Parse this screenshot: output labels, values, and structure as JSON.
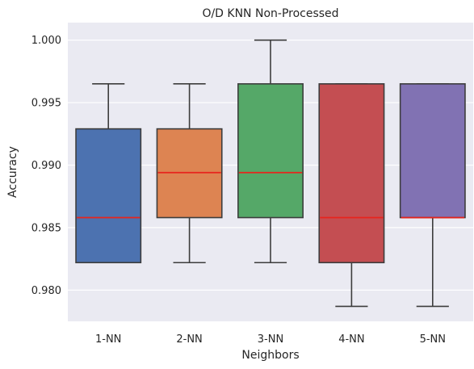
{
  "chart_data": {
    "type": "box",
    "title": "O/D KNN Non-Processed",
    "xlabel": "Neighbors",
    "ylabel": "Accuracy",
    "ylim": [
      0.9775,
      1.0014
    ],
    "yticks": [
      0.98,
      0.985,
      0.99,
      0.995,
      1.0
    ],
    "ytick_labels": [
      "0.980",
      "0.985",
      "0.990",
      "0.995",
      "1.000"
    ],
    "grid": true,
    "median_color": "#e8241c",
    "box_edge_color": "#3d3d3d",
    "background_color": "#eaeaf2",
    "categories": [
      "1-NN",
      "2-NN",
      "3-NN",
      "4-NN",
      "5-NN"
    ],
    "boxes": [
      {
        "label": "1-NN",
        "whisker_low": 0.9822,
        "q1": 0.9822,
        "median": 0.9858,
        "q3": 0.9929,
        "whisker_high": 0.9965,
        "color": "#4c72b0"
      },
      {
        "label": "2-NN",
        "whisker_low": 0.9822,
        "q1": 0.9858,
        "median": 0.9894,
        "q3": 0.9929,
        "whisker_high": 0.9965,
        "color": "#dd8452"
      },
      {
        "label": "3-NN",
        "whisker_low": 0.9822,
        "q1": 0.9858,
        "median": 0.9894,
        "q3": 0.9965,
        "whisker_high": 1.0,
        "color": "#55a868"
      },
      {
        "label": "4-NN",
        "whisker_low": 0.9787,
        "q1": 0.9822,
        "median": 0.9858,
        "q3": 0.9965,
        "whisker_high": 0.9965,
        "color": "#c44e52"
      },
      {
        "label": "5-NN",
        "whisker_low": 0.9787,
        "q1": 0.9858,
        "median": 0.9858,
        "q3": 0.9965,
        "whisker_high": 0.9965,
        "color": "#8172b3"
      }
    ]
  }
}
